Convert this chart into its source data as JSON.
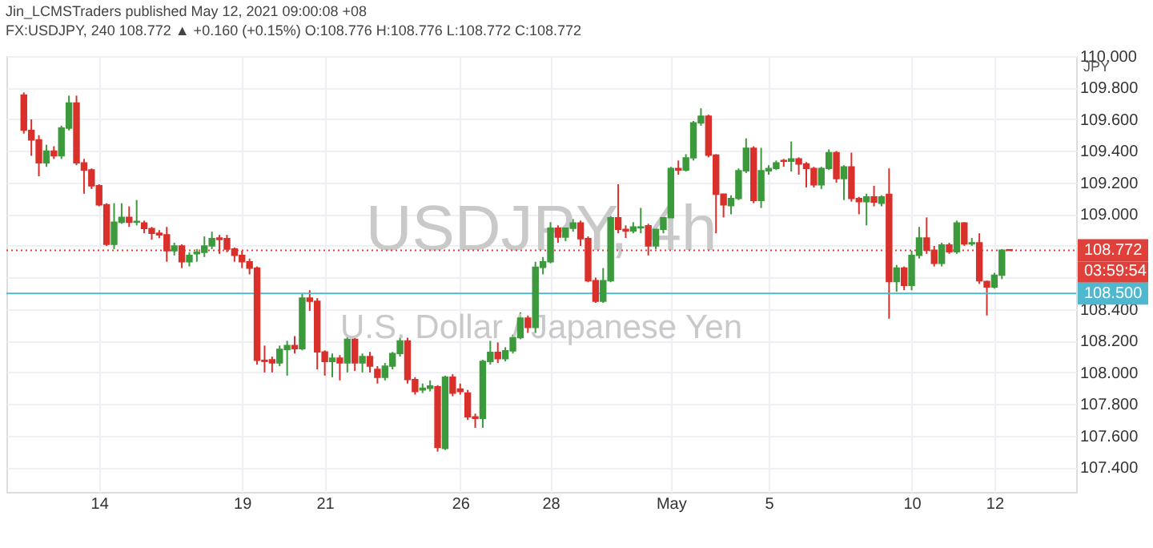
{
  "chart_data": {
    "type": "candlestick",
    "title": "Jin_LCMSTraders published May 12, 2021 09:00:08 +08",
    "subtitle": "FX:USDJPY, 240  108.772 ▲ +0.160 (+0.15%)  O:108.776 H:108.776 L:108.772 C:108.772",
    "ylabel": "JPY",
    "annotations": [
      "USDJPY, 4h",
      "U.S. Dollar / Japanese Yen",
      "03:59:54"
    ],
    "categories": [
      null,
      null,
      null,
      null,
      null,
      null,
      null,
      null,
      null,
      null,
      "14",
      null,
      null,
      null,
      null,
      null,
      null,
      null,
      null,
      null,
      null,
      null,
      null,
      null,
      null,
      null,
      null,
      null,
      null,
      "19",
      null,
      null,
      null,
      null,
      null,
      null,
      null,
      null,
      null,
      null,
      "21",
      null,
      null,
      null,
      null,
      null,
      null,
      null,
      null,
      null,
      null,
      null,
      null,
      null,
      null,
      null,
      null,
      null,
      "26",
      null,
      null,
      null,
      null,
      null,
      null,
      null,
      null,
      null,
      null,
      null,
      "28",
      null,
      null,
      null,
      null,
      null,
      null,
      null,
      null,
      null,
      null,
      null,
      null,
      null,
      null,
      null,
      "May",
      null,
      null,
      null,
      null,
      null,
      null,
      null,
      null,
      null,
      null,
      null,
      null,
      "5",
      null,
      null,
      null,
      null,
      null,
      null,
      null,
      null,
      null,
      null,
      null,
      null,
      null,
      null,
      null,
      null,
      null,
      null,
      "10",
      null,
      null,
      null,
      null,
      null,
      null,
      null,
      null,
      null,
      null,
      "12",
      null,
      null
    ],
    "ohlc": [
      [
        109.753,
        109.77,
        109.51,
        109.532
      ],
      [
        109.53,
        109.6,
        109.37,
        109.47
      ],
      [
        109.47,
        109.5,
        109.24,
        109.325
      ],
      [
        109.325,
        109.44,
        109.3,
        109.4
      ],
      [
        109.4,
        109.43,
        109.35,
        109.37
      ],
      [
        109.37,
        109.56,
        109.35,
        109.545
      ],
      [
        109.545,
        109.75,
        109.53,
        109.704
      ],
      [
        109.704,
        109.75,
        109.31,
        109.325
      ],
      [
        109.325,
        109.35,
        109.13,
        109.28
      ],
      [
        109.28,
        109.29,
        109.16,
        109.18
      ],
      [
        109.18,
        109.19,
        109.05,
        109.06
      ],
      [
        109.06,
        109.07,
        108.8,
        108.81
      ],
      [
        108.81,
        109.07,
        108.78,
        108.95
      ],
      [
        108.95,
        109.07,
        108.94,
        108.98
      ],
      [
        108.98,
        109.05,
        108.92,
        108.95
      ],
      [
        108.95,
        109.09,
        108.93,
        108.955
      ],
      [
        108.945,
        108.96,
        108.88,
        108.91
      ],
      [
        108.91,
        108.92,
        108.84,
        108.88
      ],
      [
        108.88,
        108.9,
        108.85,
        108.87
      ],
      [
        108.87,
        108.92,
        108.7,
        108.77
      ],
      [
        108.77,
        108.82,
        108.74,
        108.8
      ],
      [
        108.8,
        108.81,
        108.66,
        108.7
      ],
      [
        108.7,
        108.76,
        108.67,
        108.74
      ],
      [
        108.75,
        108.78,
        108.7,
        108.76
      ],
      [
        108.76,
        108.86,
        108.73,
        108.8
      ],
      [
        108.8,
        108.89,
        108.78,
        108.846
      ],
      [
        108.85,
        108.87,
        108.75,
        108.84
      ],
      [
        108.846,
        108.87,
        108.76,
        108.78
      ],
      [
        108.78,
        108.79,
        108.7,
        108.74
      ],
      [
        108.74,
        108.77,
        108.66,
        108.7
      ],
      [
        108.7,
        108.72,
        108.62,
        108.66
      ],
      [
        108.66,
        108.67,
        108.05,
        108.077
      ],
      [
        108.077,
        108.17,
        108.0,
        108.07
      ],
      [
        108.08,
        108.1,
        108.0,
        108.06
      ],
      [
        108.06,
        108.17,
        108.04,
        108.146
      ],
      [
        108.146,
        108.2,
        107.98,
        108.17
      ],
      [
        108.17,
        108.23,
        108.12,
        108.15
      ],
      [
        108.15,
        108.5,
        108.14,
        108.47
      ],
      [
        108.47,
        108.52,
        108.39,
        108.45
      ],
      [
        108.45,
        108.47,
        108.02,
        108.13
      ],
      [
        108.13,
        108.14,
        107.98,
        108.07
      ],
      [
        108.07,
        108.12,
        107.97,
        108.09
      ],
      [
        108.09,
        108.11,
        107.95,
        108.06
      ],
      [
        108.06,
        108.23,
        108.0,
        108.21
      ],
      [
        108.21,
        108.22,
        108.01,
        108.06
      ],
      [
        108.06,
        108.12,
        108.0,
        108.1
      ],
      [
        108.1,
        108.13,
        108.0,
        108.04
      ],
      [
        108.02,
        108.04,
        107.93,
        107.97
      ],
      [
        107.97,
        108.06,
        107.95,
        108.04
      ],
      [
        108.04,
        108.13,
        108.02,
        108.12
      ],
      [
        108.12,
        108.22,
        108.1,
        108.2
      ],
      [
        108.2,
        108.22,
        107.93,
        107.955
      ],
      [
        107.955,
        107.97,
        107.86,
        107.88
      ],
      [
        107.89,
        107.93,
        107.87,
        107.9
      ],
      [
        107.9,
        107.95,
        107.88,
        107.915
      ],
      [
        107.91,
        107.92,
        107.5,
        107.526
      ],
      [
        107.52,
        107.98,
        107.51,
        107.97
      ],
      [
        107.97,
        107.99,
        107.85,
        107.87
      ],
      [
        107.895,
        107.93,
        107.86,
        107.88
      ],
      [
        107.87,
        107.89,
        107.7,
        107.72
      ],
      [
        107.72,
        107.74,
        107.65,
        107.71
      ],
      [
        107.71,
        108.08,
        107.65,
        108.07
      ],
      [
        108.07,
        108.2,
        108.05,
        108.127
      ],
      [
        108.127,
        108.19,
        108.06,
        108.087
      ],
      [
        108.087,
        108.16,
        108.07,
        108.137
      ],
      [
        108.137,
        108.24,
        108.12,
        108.22
      ],
      [
        108.22,
        108.38,
        108.21,
        108.344
      ],
      [
        108.344,
        108.36,
        108.25,
        108.285
      ],
      [
        108.285,
        108.7,
        108.25,
        108.665
      ],
      [
        108.665,
        108.73,
        108.62,
        108.7
      ],
      [
        108.7,
        108.95,
        108.69,
        108.912
      ],
      [
        108.912,
        108.93,
        108.82,
        108.856
      ],
      [
        108.856,
        108.93,
        108.83,
        108.912
      ],
      [
        108.912,
        108.97,
        108.89,
        108.945
      ],
      [
        108.945,
        108.96,
        108.8,
        108.846
      ],
      [
        108.846,
        108.86,
        108.57,
        108.58
      ],
      [
        108.58,
        108.6,
        108.44,
        108.45
      ],
      [
        108.45,
        108.66,
        108.44,
        108.58
      ],
      [
        108.58,
        108.99,
        108.57,
        108.978
      ],
      [
        108.978,
        109.19,
        108.88,
        108.905
      ],
      [
        108.905,
        108.93,
        108.85,
        108.895
      ],
      [
        108.895,
        108.95,
        108.88,
        108.92
      ],
      [
        108.915,
        109.04,
        108.88,
        108.92
      ],
      [
        108.928,
        108.94,
        108.74,
        108.8
      ],
      [
        108.8,
        108.91,
        108.78,
        108.905
      ],
      [
        108.905,
        108.99,
        108.88,
        108.978
      ],
      [
        108.978,
        109.3,
        108.96,
        109.29
      ],
      [
        109.29,
        109.34,
        109.25,
        109.28
      ],
      [
        109.28,
        109.38,
        109.27,
        109.357
      ],
      [
        109.357,
        109.59,
        109.34,
        109.578
      ],
      [
        109.578,
        109.67,
        109.56,
        109.62
      ],
      [
        109.62,
        109.63,
        109.36,
        109.374
      ],
      [
        109.374,
        109.38,
        108.88,
        109.127
      ],
      [
        109.127,
        109.13,
        108.98,
        109.06
      ],
      [
        109.055,
        109.12,
        109.0,
        109.1
      ],
      [
        109.1,
        109.29,
        109.09,
        109.275
      ],
      [
        109.275,
        109.48,
        109.26,
        109.417
      ],
      [
        109.417,
        109.43,
        109.07,
        109.087
      ],
      [
        109.087,
        109.42,
        109.04,
        109.275
      ],
      [
        109.275,
        109.31,
        109.25,
        109.29
      ],
      [
        109.29,
        109.34,
        109.28,
        109.325
      ],
      [
        109.34,
        109.35,
        109.3,
        109.335
      ],
      [
        109.335,
        109.46,
        109.27,
        109.35
      ],
      [
        109.35,
        109.36,
        109.25,
        109.318
      ],
      [
        109.318,
        109.33,
        109.17,
        109.29
      ],
      [
        109.29,
        109.3,
        109.17,
        109.186
      ],
      [
        109.186,
        109.3,
        109.16,
        109.29
      ],
      [
        109.29,
        109.41,
        109.28,
        109.39
      ],
      [
        109.39,
        109.4,
        109.2,
        109.225
      ],
      [
        109.225,
        109.31,
        109.09,
        109.3
      ],
      [
        109.3,
        109.39,
        109.08,
        109.1
      ],
      [
        109.1,
        109.11,
        109.0,
        109.08
      ],
      [
        109.08,
        109.13,
        108.93,
        109.11
      ],
      [
        109.11,
        109.18,
        109.05,
        109.077
      ],
      [
        109.07,
        109.12,
        109.05,
        109.11
      ],
      [
        109.126,
        109.29,
        108.34,
        108.575
      ],
      [
        108.575,
        108.68,
        108.51,
        108.66
      ],
      [
        108.66,
        108.67,
        108.52,
        108.55
      ],
      [
        108.55,
        108.77,
        108.52,
        108.74
      ],
      [
        108.74,
        108.92,
        108.72,
        108.85
      ],
      [
        108.85,
        108.98,
        108.75,
        108.773
      ],
      [
        108.773,
        108.8,
        108.67,
        108.69
      ],
      [
        108.69,
        108.82,
        108.67,
        108.806
      ],
      [
        108.806,
        108.82,
        108.75,
        108.763
      ],
      [
        108.763,
        108.96,
        108.75,
        108.945
      ],
      [
        108.945,
        108.95,
        108.8,
        108.813
      ],
      [
        108.813,
        108.85,
        108.8,
        108.82
      ],
      [
        108.82,
        108.88,
        108.56,
        108.58
      ],
      [
        108.575,
        108.58,
        108.36,
        108.54
      ],
      [
        108.54,
        108.63,
        108.53,
        108.615
      ],
      [
        108.615,
        108.78,
        108.59,
        108.773
      ],
      [
        108.776,
        108.776,
        108.772,
        108.772
      ]
    ],
    "colors": [
      "#d9302b",
      "#d9302b",
      "#d9302b",
      "#3c9a3c",
      "#d9302b",
      "#3c9a3c",
      "#3c9a3c",
      "#d9302b",
      "#d9302b",
      "#d9302b",
      "#d9302b",
      "#d9302b",
      "#3c9a3c",
      "#3c9a3c",
      "#d9302b",
      "#3c9a3c",
      "#d9302b",
      "#d9302b",
      "#d9302b",
      "#d9302b",
      "#3c9a3c",
      "#d9302b",
      "#3c9a3c",
      "#3c9a3c",
      "#3c9a3c",
      "#3c9a3c",
      "#d9302b",
      "#d9302b",
      "#d9302b",
      "#d9302b",
      "#d9302b",
      "#d9302b",
      "#d9302b",
      "#d9302b",
      "#3c9a3c",
      "#3c9a3c",
      "#d9302b",
      "#3c9a3c",
      "#d9302b",
      "#d9302b",
      "#d9302b",
      "#3c9a3c",
      "#d9302b",
      "#3c9a3c",
      "#d9302b",
      "#3c9a3c",
      "#d9302b",
      "#d9302b",
      "#3c9a3c",
      "#3c9a3c",
      "#3c9a3c",
      "#d9302b",
      "#d9302b",
      "#3c9a3c",
      "#3c9a3c",
      "#d9302b",
      "#3c9a3c",
      "#d9302b",
      "#d9302b",
      "#d9302b",
      "#d9302b",
      "#3c9a3c",
      "#3c9a3c",
      "#d9302b",
      "#3c9a3c",
      "#3c9a3c",
      "#3c9a3c",
      "#d9302b",
      "#3c9a3c",
      "#3c9a3c",
      "#3c9a3c",
      "#d9302b",
      "#3c9a3c",
      "#3c9a3c",
      "#d9302b",
      "#d9302b",
      "#d9302b",
      "#3c9a3c",
      "#3c9a3c",
      "#d9302b",
      "#d9302b",
      "#3c9a3c",
      "#3c9a3c",
      "#d9302b",
      "#3c9a3c",
      "#3c9a3c",
      "#3c9a3c",
      "#d9302b",
      "#3c9a3c",
      "#3c9a3c",
      "#3c9a3c",
      "#d9302b",
      "#d9302b",
      "#d9302b",
      "#3c9a3c",
      "#3c9a3c",
      "#3c9a3c",
      "#d9302b",
      "#3c9a3c",
      "#3c9a3c",
      "#3c9a3c",
      "#d9302b",
      "#3c9a3c",
      "#d9302b",
      "#d9302b",
      "#d9302b",
      "#3c9a3c",
      "#3c9a3c",
      "#d9302b",
      "#3c9a3c",
      "#d9302b",
      "#d9302b",
      "#3c9a3c",
      "#d9302b",
      "#3c9a3c",
      "#d9302b",
      "#3c9a3c",
      "#d9302b",
      "#3c9a3c",
      "#3c9a3c",
      "#d9302b",
      "#d9302b",
      "#3c9a3c",
      "#d9302b",
      "#3c9a3c",
      "#d9302b",
      "#3c9a3c",
      "#d9302b",
      "#d9302b",
      "#3c9a3c",
      "#3c9a3c",
      "#d9302b"
    ],
    "ylim": [
      107.245,
      110.0
    ],
    "yticks": [
      {
        "value": 107.4,
        "label": "107.400"
      },
      {
        "value": 107.6,
        "label": "107.600"
      },
      {
        "value": 107.8,
        "label": "107.800"
      },
      {
        "value": 108.0,
        "label": "108.000"
      },
      {
        "value": 108.2,
        "label": "108.200"
      },
      {
        "value": 108.4,
        "label": "108.400"
      },
      {
        "value": 108.6,
        "label": null
      },
      {
        "value": 108.8,
        "label": null
      },
      {
        "value": 109.0,
        "label": "109.000"
      },
      {
        "value": 109.2,
        "label": "109.200"
      },
      {
        "value": 109.4,
        "label": "109.400"
      },
      {
        "value": 109.6,
        "label": "109.600"
      },
      {
        "value": 109.8,
        "label": "109.800"
      },
      {
        "value": 110.0,
        "label": "110.000"
      }
    ],
    "ref_lines": [
      {
        "axis": "y",
        "value": 108.772,
        "label": "108.772",
        "color": "#e0403a",
        "line_style": "dotted"
      },
      {
        "axis": "y",
        "value": 108.5,
        "label": "108.500",
        "color": "#4fb8cf",
        "line_style": "solid"
      }
    ],
    "grid": true
  }
}
